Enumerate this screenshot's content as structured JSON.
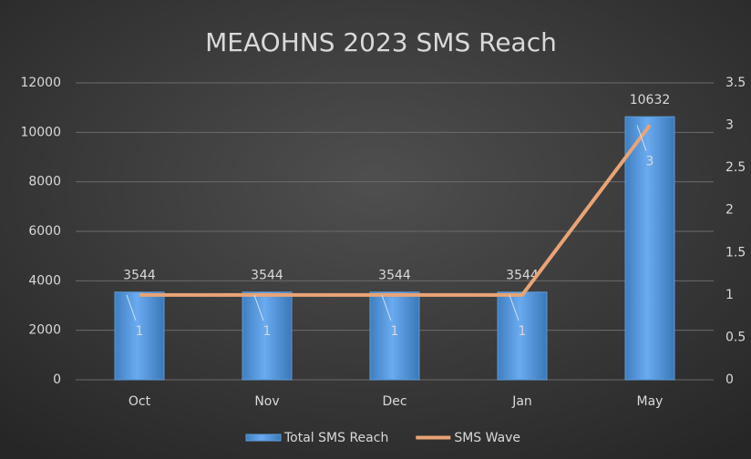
{
  "chart_data": {
    "type": "bar",
    "title": "MEAOHNS 2023 SMS Reach",
    "categories": [
      "Oct",
      "Nov",
      "Dec",
      "Jan",
      "May"
    ],
    "series": [
      {
        "name": "Total SMS Reach",
        "type": "bar",
        "color": "#5b9bd5",
        "values": [
          3544,
          3544,
          3544,
          3544,
          10632
        ]
      },
      {
        "name": "SMS Wave",
        "type": "line",
        "axis": "y2",
        "color": "#e9a475",
        "values": [
          1,
          1,
          1,
          1,
          3
        ]
      }
    ],
    "ylim": [
      0,
      12000
    ],
    "yticks": [
      0,
      2000,
      4000,
      6000,
      8000,
      10000,
      12000
    ],
    "y2lim": [
      0,
      3.5
    ],
    "y2ticks": [
      0,
      0.5,
      1,
      1.5,
      2,
      2.5,
      3,
      3.5
    ],
    "grid": true,
    "legend": "bottom"
  }
}
